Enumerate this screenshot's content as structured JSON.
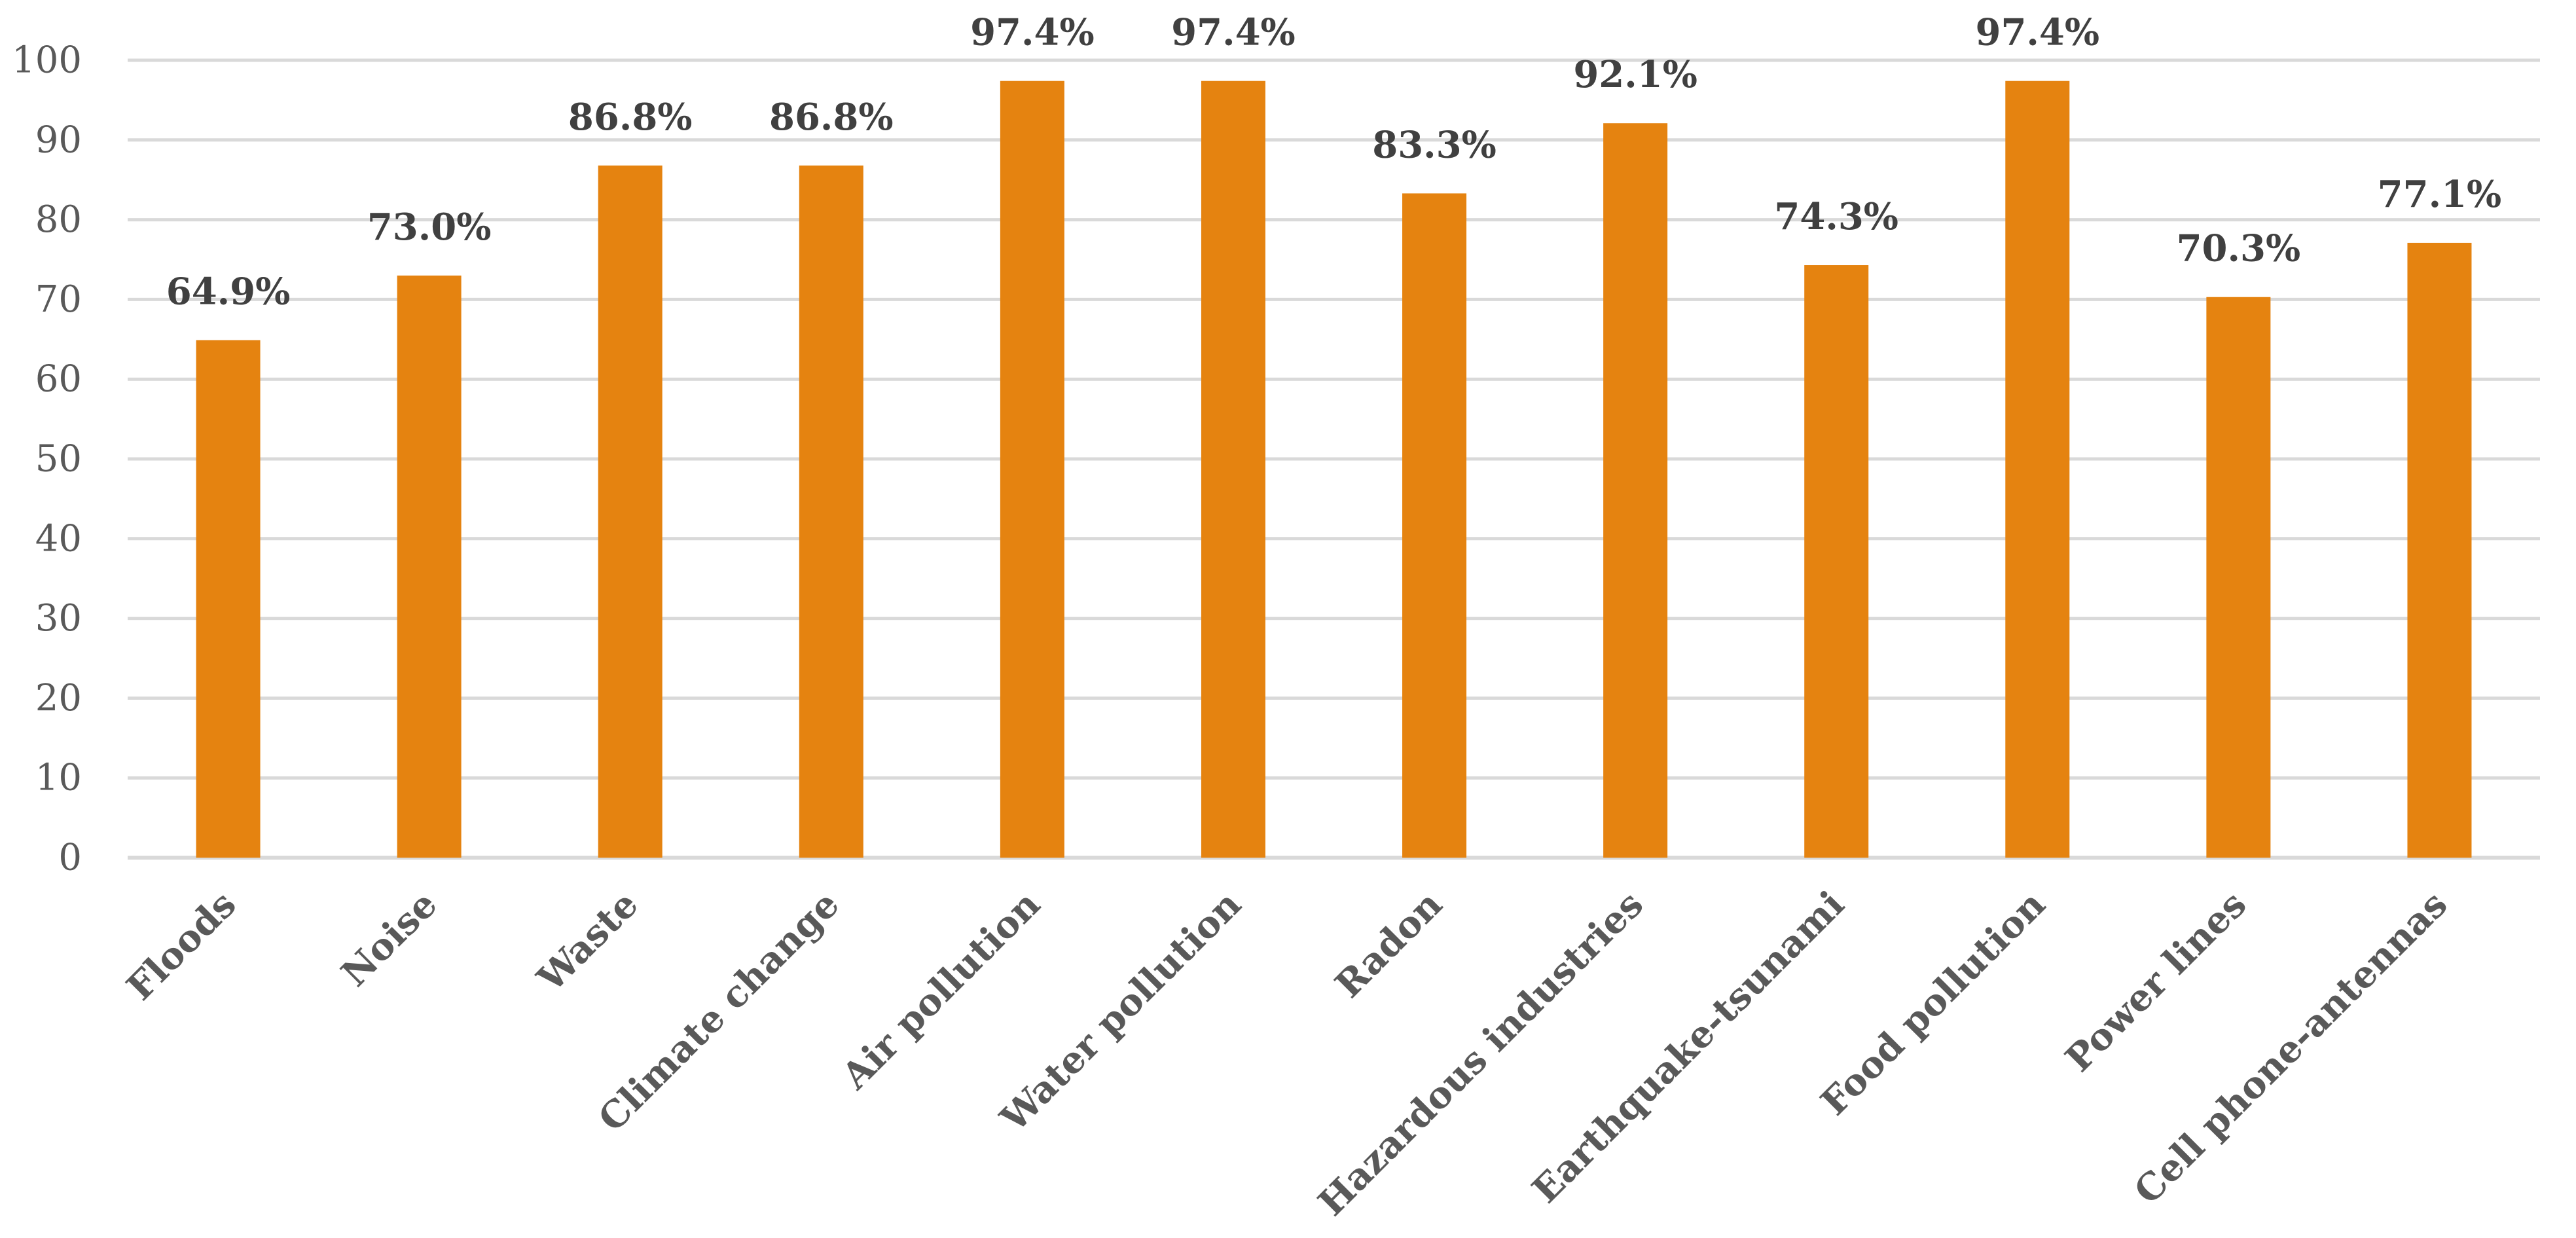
{
  "chart_data": {
    "type": "bar",
    "categories": [
      "Floods",
      "Noise",
      "Waste",
      "Climate change",
      "Air pollution",
      "Water pollution",
      "Radon",
      "Hazardous industries",
      "Earthquake-tsunami",
      "Food pollution",
      "Power lines",
      "Cell phone-antennas"
    ],
    "values": [
      64.9,
      73.0,
      86.8,
      86.8,
      97.4,
      97.4,
      83.3,
      92.1,
      74.3,
      97.4,
      70.3,
      77.1
    ],
    "data_labels": [
      "64.9%",
      "73.0%",
      "86.8%",
      "86.8%",
      "97.4%",
      "97.4%",
      "83.3%",
      "92.1%",
      "74.3%",
      "97.4%",
      "70.3%",
      "77.1%"
    ],
    "y_ticks": [
      "0",
      "10",
      "20",
      "30",
      "40",
      "50",
      "60",
      "70",
      "80",
      "90",
      "100"
    ],
    "ylim": [
      0,
      100
    ],
    "grid": true,
    "legend": "none",
    "title": "",
    "xlabel": "",
    "ylabel": "",
    "colors": {
      "bar": "#E58310",
      "grid": "#D9D9D9",
      "tick_text": "#595959",
      "label_text": "#404040"
    }
  }
}
